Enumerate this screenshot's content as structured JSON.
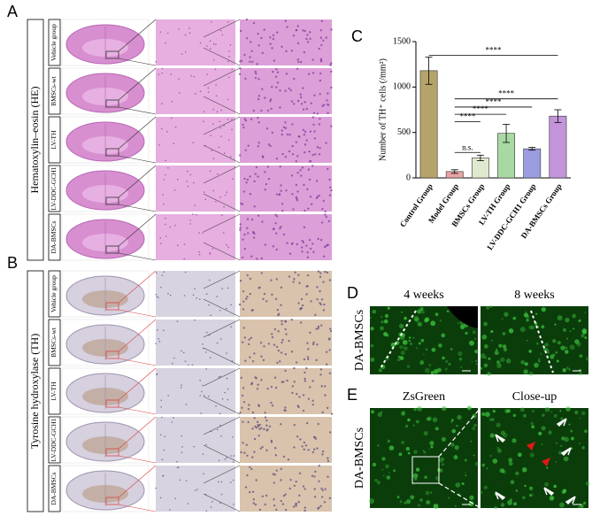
{
  "panels": {
    "A": {
      "label": "A",
      "stain": "Hematoxylin–eosin (HE)",
      "rows": [
        "Vehicle group",
        "BMSCs-wt",
        "LV-TH",
        "LV-DDC-GCH1",
        "DA-BMSCs"
      ]
    },
    "B": {
      "label": "B",
      "stain": "Tyrosine hydroxylase (TH)",
      "rows": [
        "Vehicle group",
        "BMSCs-wt",
        "LV-TH",
        "LV-DDC-GCH1",
        "DA-BMSCs"
      ]
    },
    "C": {
      "label": "C"
    },
    "D": {
      "label": "D",
      "side_label": "DA-BMSCs",
      "columns": [
        "4 weeks",
        "8 weeks"
      ]
    },
    "E": {
      "label": "E",
      "side_label": "DA-BMSCs",
      "columns": [
        "ZsGreen",
        "Close-up"
      ]
    }
  },
  "chart_data": {
    "type": "bar",
    "y_label": "Number of TH⁺ cells (/mm²)",
    "categories": [
      "Control Group",
      "Model Group",
      "BMSCs Group",
      "LV-TH Group",
      "LV-DDC-GCH1 Group",
      "DA-BMSCs Group"
    ],
    "values": [
      1180,
      70,
      220,
      490,
      320,
      680
    ],
    "errors": [
      150,
      20,
      30,
      100,
      15,
      70
    ],
    "colors": [
      "#b5a46a",
      "#e8a3a3",
      "#dfe9cf",
      "#a9d9a2",
      "#9c9ce0",
      "#c394d9"
    ],
    "ylim": [
      0,
      1500
    ],
    "yticks": [
      0,
      500,
      1000,
      1500
    ],
    "annotations": [
      {
        "label": "****",
        "from": 0,
        "to": 5,
        "y": 1350
      },
      {
        "label": "****",
        "from": 1,
        "to": 5,
        "y": 870
      },
      {
        "label": "****",
        "from": 1,
        "to": 4,
        "y": 780
      },
      {
        "label": "****",
        "from": 1,
        "to": 3,
        "y": 700
      },
      {
        "label": "****",
        "from": 1,
        "to": 2,
        "y": 620
      },
      {
        "label": "n.s.",
        "from": 1,
        "to": 2,
        "y": 280
      }
    ]
  }
}
